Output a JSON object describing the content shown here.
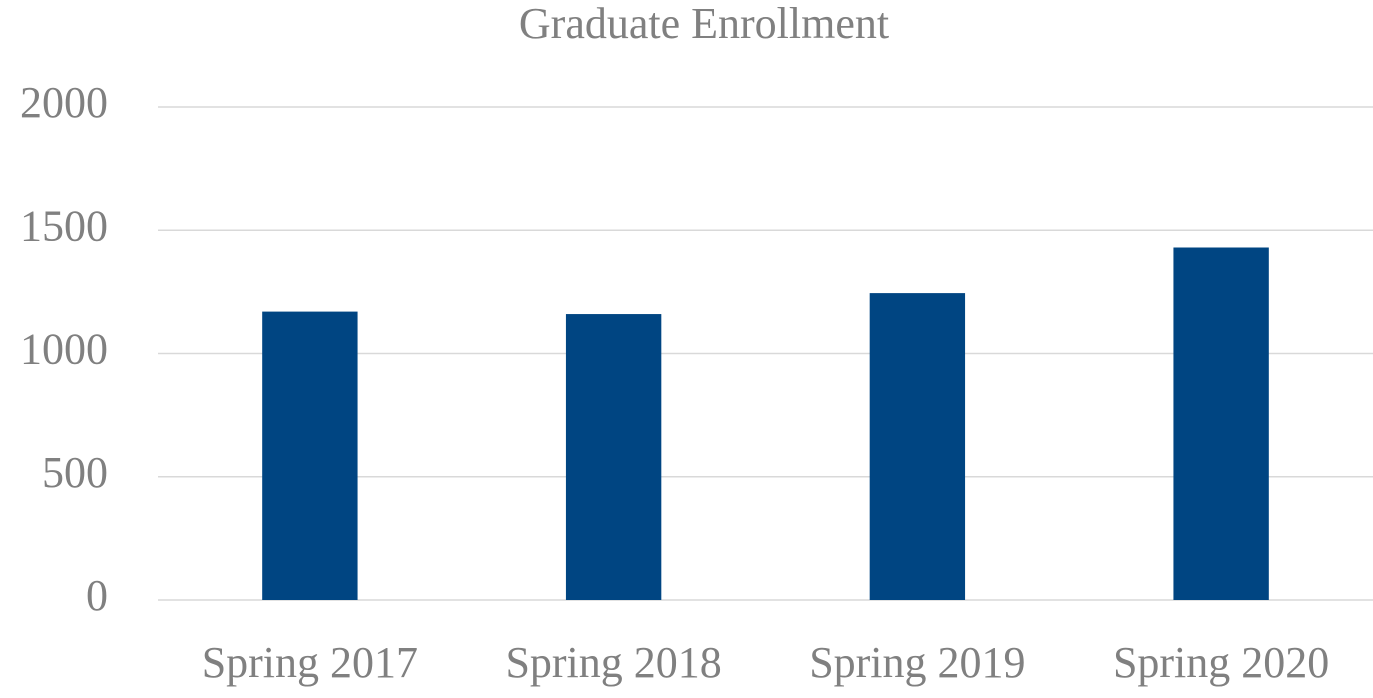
{
  "chart_data": {
    "type": "bar",
    "title": "Graduate Enrollment",
    "categories": [
      "Spring 2017",
      "Spring 2018",
      "Spring 2019",
      "Spring 2020"
    ],
    "values": [
      1170,
      1160,
      1245,
      1430
    ],
    "color": "#004582",
    "ylim": [
      0,
      2000
    ],
    "yticks": [
      0,
      500,
      1000,
      1500,
      2000
    ],
    "grid": true
  }
}
